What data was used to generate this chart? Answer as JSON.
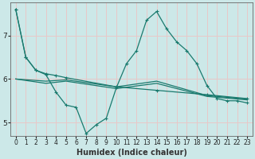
{
  "xlabel": "Humidex (Indice chaleur)",
  "background_color": "#cce8e8",
  "grid_color": "#e8c8c8",
  "line_color": "#1a7a6e",
  "xlim": [
    -0.5,
    23.5
  ],
  "ylim": [
    4.7,
    7.75
  ],
  "yticks": [
    5,
    6,
    7
  ],
  "xticks": [
    0,
    1,
    2,
    3,
    4,
    5,
    6,
    7,
    8,
    9,
    10,
    11,
    12,
    13,
    14,
    15,
    16,
    17,
    18,
    19,
    20,
    21,
    22,
    23
  ],
  "line_peaked": {
    "x": [
      0,
      1,
      2,
      3,
      4,
      5,
      6,
      7,
      8,
      9,
      10,
      11,
      12,
      13,
      14,
      15,
      16,
      17,
      18,
      19,
      20,
      21,
      22,
      23
    ],
    "y": [
      7.6,
      6.5,
      6.2,
      6.1,
      5.7,
      5.4,
      5.35,
      4.75,
      4.95,
      5.1,
      5.8,
      6.35,
      6.65,
      7.35,
      7.55,
      7.15,
      6.85,
      6.65,
      6.35,
      5.85,
      5.55,
      5.5,
      5.5,
      5.45
    ]
  },
  "line_declining": {
    "x": [
      0,
      1,
      2,
      3,
      4,
      5,
      10,
      14,
      19,
      23
    ],
    "y": [
      7.6,
      6.5,
      6.2,
      6.12,
      6.08,
      6.03,
      5.82,
      5.74,
      5.64,
      5.55
    ]
  },
  "line_flat1": {
    "x": [
      0,
      3,
      5,
      10,
      14,
      19,
      23
    ],
    "y": [
      6.0,
      5.95,
      5.98,
      5.82,
      5.95,
      5.62,
      5.54
    ]
  },
  "line_flat2": {
    "x": [
      0,
      3,
      5,
      10,
      14,
      19,
      23
    ],
    "y": [
      6.0,
      5.9,
      5.95,
      5.78,
      5.9,
      5.6,
      5.52
    ]
  }
}
